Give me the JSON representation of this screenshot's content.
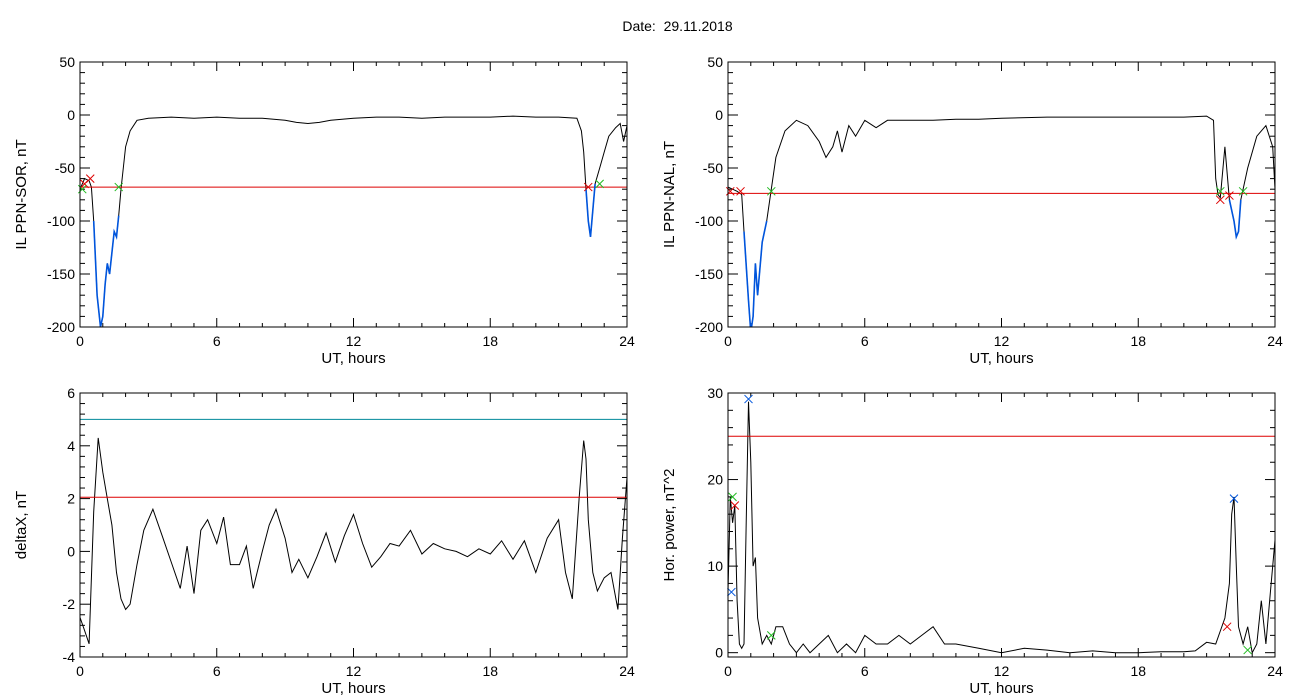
{
  "page": {
    "title": "Date:  29.11.2018"
  },
  "colors": {
    "axis": "#000000",
    "signal": "#000000",
    "red": "#dd0000",
    "blue": "#0055dd",
    "green": "#22bb22",
    "cyan": "#008899"
  },
  "chart_data": [
    {
      "id": "il-sor",
      "type": "line",
      "ylabel": "IL PPN-SOR, nT",
      "xlabel": "UT, hours",
      "xlim": [
        0,
        24
      ],
      "ylim": [
        -200,
        50
      ],
      "xticks": [
        0,
        6,
        12,
        18,
        24
      ],
      "yticks": [
        -200,
        -150,
        -100,
        -50,
        0,
        50
      ],
      "series": [
        {
          "color": "black",
          "x": [
            0,
            0.2,
            0.4,
            0.5,
            0.6,
            0.75,
            0.9,
            1.0,
            1.1,
            1.2,
            1.3,
            1.4,
            1.5,
            1.6,
            1.7,
            1.8,
            1.9,
            2.0,
            2.2,
            2.5,
            3,
            4,
            5,
            6,
            7,
            8,
            9,
            9.5,
            10,
            10.5,
            11,
            12,
            13,
            14,
            15,
            16,
            17,
            18,
            19,
            20,
            21,
            21.8,
            22.0,
            22.1,
            22.2,
            22.3,
            22.4,
            22.5,
            22.6,
            22.8,
            23.0,
            23.2,
            23.5,
            23.7,
            23.85,
            24
          ],
          "y": [
            -70,
            -60,
            -62,
            -68,
            -100,
            -170,
            -200,
            -190,
            -160,
            -140,
            -150,
            -130,
            -110,
            -115,
            -95,
            -70,
            -50,
            -30,
            -15,
            -5,
            -3,
            -2,
            -3,
            -2,
            -3,
            -3,
            -5,
            -7,
            -8,
            -7,
            -5,
            -3,
            -2,
            -2,
            -3,
            -2,
            -2,
            -2,
            -1,
            -2,
            -2,
            -3,
            -15,
            -35,
            -70,
            -100,
            -115,
            -90,
            -65,
            -50,
            -35,
            -20,
            -12,
            -8,
            -25,
            -10
          ]
        },
        {
          "color": "red",
          "x": [
            0,
            24
          ],
          "y": [
            -68,
            -68
          ]
        },
        {
          "color": "blue",
          "x": [
            0.6,
            0.75,
            0.9,
            1.0,
            1.1,
            1.2,
            1.3,
            1.4,
            1.5,
            1.6,
            1.7
          ],
          "y": [
            -100,
            -170,
            -200,
            -190,
            -160,
            -140,
            -150,
            -130,
            -110,
            -115,
            -95
          ]
        },
        {
          "color": "blue",
          "x": [
            22.2,
            22.3,
            22.4,
            22.5,
            22.6
          ],
          "y": [
            -70,
            -100,
            -115,
            -90,
            -65
          ]
        }
      ],
      "markers": [
        {
          "color": "red",
          "x": [
            0.2,
            0.45,
            22.3
          ],
          "y": [
            -65,
            -60,
            -68
          ]
        },
        {
          "color": "green",
          "x": [
            0.1,
            1.7,
            22.8
          ],
          "y": [
            -70,
            -68,
            -65
          ]
        }
      ]
    },
    {
      "id": "il-nal",
      "type": "line",
      "ylabel": "IL PPN-NAL, nT",
      "xlabel": "UT, hours",
      "xlim": [
        0,
        24
      ],
      "ylim": [
        -200,
        50
      ],
      "xticks": [
        0,
        6,
        12,
        18,
        24
      ],
      "yticks": [
        -200,
        -150,
        -100,
        -50,
        0,
        50
      ],
      "series": [
        {
          "color": "black",
          "x": [
            0,
            0.2,
            0.4,
            0.6,
            0.7,
            0.9,
            1.0,
            1.1,
            1.2,
            1.3,
            1.5,
            1.7,
            1.9,
            2.1,
            2.5,
            3,
            3.5,
            4,
            4.3,
            4.6,
            4.8,
            5,
            5.3,
            5.6,
            6,
            6.5,
            7,
            8,
            9,
            10,
            11,
            12,
            14,
            16,
            18,
            20,
            21.0,
            21.3,
            21.4,
            21.5,
            21.6,
            21.8,
            22.0,
            22.2,
            22.3,
            22.4,
            22.5,
            22.8,
            23.2,
            23.6,
            23.9,
            24
          ],
          "y": [
            -68,
            -70,
            -72,
            -75,
            -110,
            -175,
            -205,
            -190,
            -140,
            -170,
            -120,
            -100,
            -70,
            -40,
            -15,
            -5,
            -10,
            -25,
            -40,
            -30,
            -15,
            -35,
            -10,
            -20,
            -5,
            -12,
            -5,
            -5,
            -5,
            -4,
            -4,
            -3,
            -2,
            -2,
            -2,
            -2,
            -1,
            -5,
            -60,
            -75,
            -78,
            -30,
            -80,
            -100,
            -115,
            -110,
            -80,
            -50,
            -20,
            -10,
            -30,
            -70
          ]
        },
        {
          "color": "red",
          "x": [
            0,
            24
          ],
          "y": [
            -74,
            -74
          ]
        },
        {
          "color": "blue",
          "x": [
            0.7,
            0.9,
            1.0,
            1.1,
            1.2,
            1.3,
            1.5,
            1.7
          ],
          "y": [
            -110,
            -175,
            -205,
            -190,
            -140,
            -170,
            -120,
            -100
          ]
        },
        {
          "color": "blue",
          "x": [
            22.0,
            22.2,
            22.3,
            22.4,
            22.5
          ],
          "y": [
            -80,
            -100,
            -115,
            -110,
            -80
          ]
        }
      ],
      "markers": [
        {
          "color": "red",
          "x": [
            0.1,
            0.55,
            21.6,
            22.0
          ],
          "y": [
            -72,
            -72,
            -80,
            -76
          ]
        },
        {
          "color": "green",
          "x": [
            1.9,
            21.6,
            22.6
          ],
          "y": [
            -72,
            -72,
            -72
          ]
        }
      ]
    },
    {
      "id": "deltax",
      "type": "line",
      "ylabel": "deltaX, nT",
      "xlabel": "UT, hours",
      "xlim": [
        0,
        24
      ],
      "ylim": [
        -4,
        6
      ],
      "xticks": [
        0,
        6,
        12,
        18,
        24
      ],
      "yticks": [
        -4,
        -2,
        0,
        2,
        4,
        6
      ],
      "series": [
        {
          "color": "black",
          "x": [
            0,
            0.2,
            0.4,
            0.6,
            0.8,
            1.0,
            1.2,
            1.4,
            1.6,
            1.8,
            2.0,
            2.2,
            2.5,
            2.8,
            3.2,
            3.6,
            4.0,
            4.4,
            4.7,
            5.0,
            5.3,
            5.6,
            6.0,
            6.3,
            6.6,
            7.0,
            7.3,
            7.6,
            8.0,
            8.3,
            8.6,
            9.0,
            9.3,
            9.6,
            10.0,
            10.4,
            10.8,
            11.2,
            11.6,
            12.0,
            12.4,
            12.8,
            13.2,
            13.6,
            14.0,
            14.5,
            15.0,
            15.5,
            16.0,
            16.5,
            17.0,
            17.5,
            18.0,
            18.5,
            19.0,
            19.5,
            20.0,
            20.5,
            21.0,
            21.3,
            21.6,
            21.9,
            22.1,
            22.2,
            22.3,
            22.5,
            22.7,
            23.0,
            23.3,
            23.6,
            23.8,
            24
          ],
          "y": [
            -2.5,
            -3.0,
            -3.5,
            1.5,
            4.3,
            3.0,
            2.0,
            1.0,
            -0.8,
            -1.8,
            -2.2,
            -2.0,
            -0.5,
            0.8,
            1.6,
            0.6,
            -0.4,
            -1.4,
            0.2,
            -1.6,
            0.8,
            1.2,
            0.3,
            1.3,
            -0.5,
            -0.5,
            0.2,
            -1.4,
            0.0,
            1.0,
            1.6,
            0.5,
            -0.8,
            -0.3,
            -1.0,
            -0.2,
            0.7,
            -0.4,
            0.6,
            1.4,
            0.3,
            -0.6,
            -0.2,
            0.3,
            0.2,
            0.8,
            -0.1,
            0.3,
            0.1,
            0.0,
            -0.2,
            0.1,
            -0.1,
            0.4,
            -0.3,
            0.4,
            -0.8,
            0.5,
            1.2,
            -0.8,
            -1.8,
            2.0,
            4.2,
            3.5,
            1.2,
            -0.8,
            -1.5,
            -1.0,
            -0.8,
            -2.2,
            0.5,
            2.8
          ]
        },
        {
          "color": "red",
          "x": [
            0,
            24
          ],
          "y": [
            2.05,
            2.05
          ]
        },
        {
          "color": "cyan",
          "x": [
            0,
            24
          ],
          "y": [
            5.0,
            5.0
          ]
        }
      ],
      "markers": []
    },
    {
      "id": "hor-power",
      "type": "line",
      "ylabel": "Hor. power, nT^2",
      "xlabel": "UT, hours",
      "xlim": [
        0,
        24
      ],
      "ylim": [
        -0.5,
        30
      ],
      "xticks": [
        0,
        6,
        12,
        18,
        24
      ],
      "yticks": [
        0,
        10,
        20,
        30
      ],
      "series": [
        {
          "color": "black",
          "x": [
            0,
            0.1,
            0.2,
            0.3,
            0.4,
            0.5,
            0.6,
            0.7,
            0.8,
            0.9,
            1.0,
            1.1,
            1.2,
            1.3,
            1.5,
            1.7,
            1.9,
            2.1,
            2.4,
            2.7,
            3.0,
            3.3,
            3.6,
            4.0,
            4.4,
            4.8,
            5.2,
            5.6,
            6.0,
            6.5,
            7.0,
            7.5,
            8.0,
            8.5,
            9.0,
            9.5,
            10,
            11,
            12,
            13,
            14,
            15,
            16,
            17,
            18,
            19,
            20,
            20.5,
            21,
            21.4,
            21.6,
            21.8,
            22.0,
            22.1,
            22.2,
            22.3,
            22.4,
            22.6,
            22.8,
            23.0,
            23.2,
            23.4,
            23.6,
            23.8,
            24
          ],
          "y": [
            7,
            18,
            15,
            17,
            6,
            1,
            0.5,
            1,
            15,
            29,
            22,
            10,
            11,
            4,
            1,
            2,
            1,
            3,
            3,
            1,
            0,
            1,
            0,
            1,
            2,
            0,
            1,
            0,
            2,
            1,
            1,
            2,
            1,
            2,
            3,
            1,
            1,
            0.5,
            0,
            0.5,
            0.3,
            0,
            0.2,
            0,
            0,
            0.1,
            0.1,
            0.2,
            1.2,
            1,
            2.5,
            4,
            8,
            16,
            18,
            10,
            3,
            1,
            3,
            0,
            1,
            6,
            1,
            7,
            13
          ]
        },
        {
          "color": "red",
          "x": [
            0,
            24
          ],
          "y": [
            25,
            25
          ]
        }
      ],
      "markers": [
        {
          "color": "red",
          "x": [
            0.3,
            21.9
          ],
          "y": [
            17,
            3
          ]
        },
        {
          "color": "green",
          "x": [
            0.2,
            1.9,
            22.8
          ],
          "y": [
            18,
            2,
            0.3
          ]
        },
        {
          "color": "blue",
          "x": [
            0.15,
            0.9,
            22.2
          ],
          "y": [
            7,
            29.3,
            17.8
          ]
        }
      ]
    }
  ]
}
